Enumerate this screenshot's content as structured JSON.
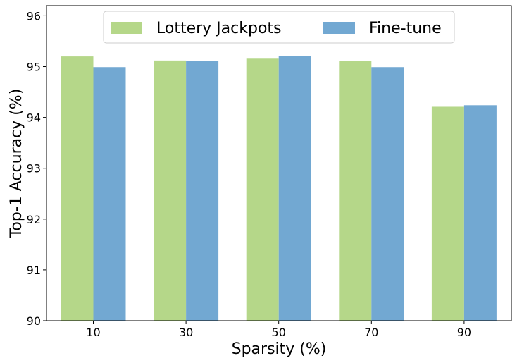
{
  "chart_data": {
    "type": "bar",
    "categories": [
      "10",
      "30",
      "50",
      "70",
      "90"
    ],
    "series": [
      {
        "name": "Lottery Jackpots",
        "values": [
          95.2,
          95.12,
          95.17,
          95.11,
          94.21
        ],
        "color": "#b5d789"
      },
      {
        "name": "Fine-tune",
        "values": [
          94.99,
          95.11,
          95.21,
          94.99,
          94.24
        ],
        "color": "#72a8d2"
      }
    ],
    "xlabel": "Sparsity (%)",
    "ylabel": "Top-1 Accuracy (%)",
    "ylim": [
      90,
      96.2
    ],
    "yticks": [
      90,
      91,
      92,
      93,
      94,
      95,
      96
    ],
    "legend_position": "top-center",
    "grid": false
  }
}
